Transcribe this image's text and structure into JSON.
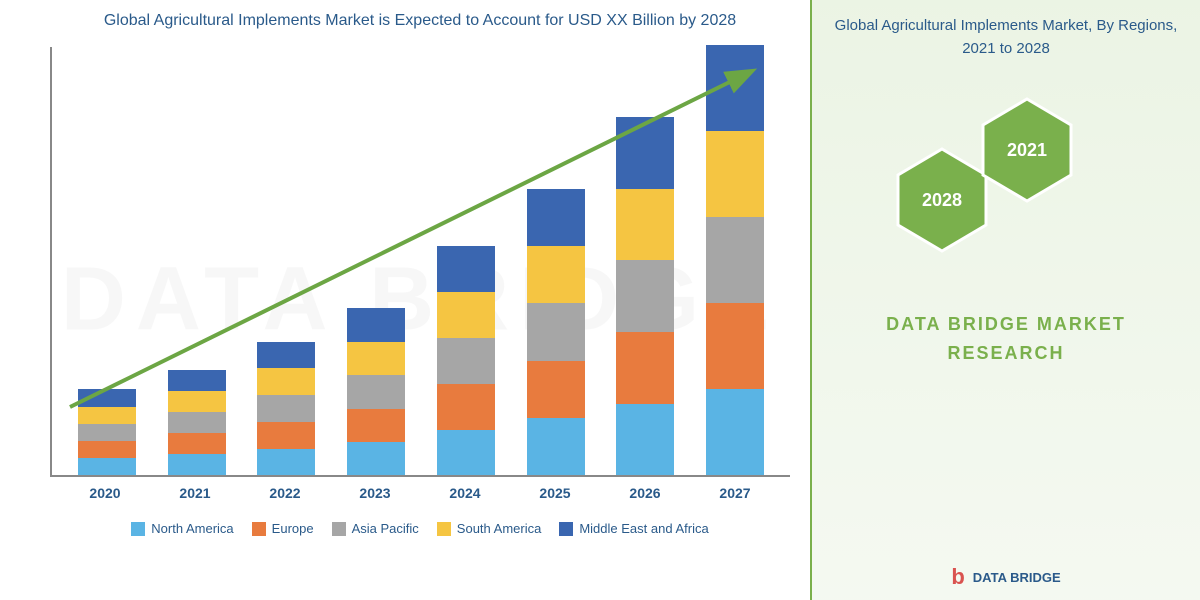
{
  "chart": {
    "type": "stacked-bar",
    "title": "Global Agricultural Implements Market is Expected to Account for USD XX Billion by 2028",
    "categories": [
      "2020",
      "2021",
      "2022",
      "2023",
      "2024",
      "2025",
      "2026",
      "2027"
    ],
    "series": [
      {
        "name": "North America",
        "color": "#5ab4e4",
        "values": [
          18,
          22,
          28,
          35,
          48,
          60,
          75,
          90
        ]
      },
      {
        "name": "Europe",
        "color": "#e87b3e",
        "values": [
          18,
          22,
          28,
          35,
          48,
          60,
          75,
          90
        ]
      },
      {
        "name": "Asia Pacific",
        "color": "#a6a6a6",
        "values": [
          18,
          22,
          28,
          35,
          48,
          60,
          75,
          90
        ]
      },
      {
        "name": "South America",
        "color": "#f5c542",
        "values": [
          18,
          22,
          28,
          35,
          48,
          60,
          75,
          90
        ]
      },
      {
        "name": "Middle East and Africa",
        "color": "#3a66b0",
        "values": [
          18,
          22,
          28,
          35,
          48,
          60,
          75,
          90
        ]
      }
    ],
    "max_total": 450,
    "axis_color": "#888888",
    "label_color": "#2a5a8a",
    "label_fontsize": 14,
    "arrow_color": "#6ca644",
    "arrow_stroke_width": 4,
    "background_color": "#ffffff"
  },
  "right_panel": {
    "title": "Global Agricultural Implements Market, By Regions, 2021 to 2028",
    "hex_fill": "#7ab04c",
    "hex_stroke": "#ffffff",
    "hex_2021": "2021",
    "hex_2028": "2028",
    "brand_line1": "DATA BRIDGE MARKET",
    "brand_line2": "RESEARCH",
    "brand_color": "#7ab04c",
    "panel_border_color": "#7ab04c"
  },
  "watermark": {
    "text": "DATA BRIDGE",
    "color": "rgba(200,200,200,0.15)"
  },
  "footer_logo": {
    "icon_text": "b",
    "icon_color": "#d9534f",
    "text": "DATA BRIDGE",
    "text_color": "#2a5a8a"
  }
}
